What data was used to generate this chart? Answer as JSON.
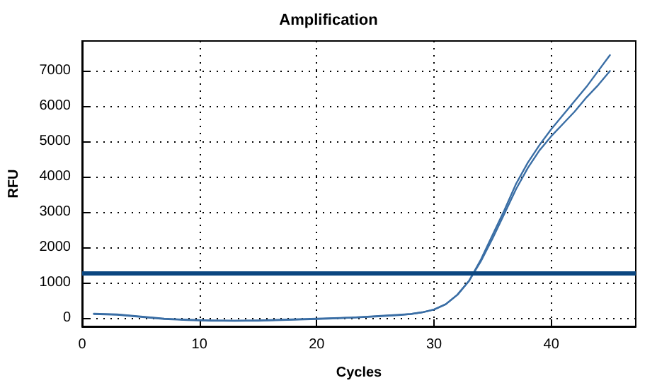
{
  "chart_data": {
    "type": "line",
    "title": "Amplification",
    "xlabel": "Cycles",
    "ylabel": "RFU",
    "x": [
      1,
      3,
      5,
      7,
      9,
      11,
      13,
      15,
      17,
      19,
      21,
      23,
      25,
      27,
      28,
      29,
      30,
      31,
      32,
      33,
      34,
      35,
      36,
      37,
      38,
      39,
      40,
      41,
      42,
      43,
      44,
      45
    ],
    "series": [
      {
        "color": "#3a6ea5",
        "values": [
          100,
          80,
          20,
          -40,
          -70,
          -90,
          -90,
          -90,
          -70,
          -50,
          -30,
          0,
          30,
          70,
          100,
          150,
          230,
          380,
          650,
          1050,
          1650,
          2350,
          3050,
          3800,
          4400,
          4900,
          5350,
          5750,
          6150,
          6550,
          7000,
          7450
        ]
      },
      {
        "color": "#3a6ea5",
        "values": [
          110,
          90,
          30,
          -30,
          -60,
          -80,
          -90,
          -80,
          -60,
          -40,
          -20,
          0,
          40,
          80,
          100,
          150,
          230,
          380,
          650,
          1050,
          1600,
          2250,
          2950,
          3650,
          4250,
          4750,
          5150,
          5500,
          5850,
          6250,
          6600,
          7000
        ]
      }
    ],
    "xlim": [
      0,
      47.2
    ],
    "xticks": [
      0,
      10,
      20,
      30,
      40
    ],
    "ylim": [
      -250,
      7850
    ],
    "yticks": [
      0,
      1000,
      2000,
      3000,
      4000,
      5000,
      6000,
      7000
    ],
    "ref_lines": [
      {
        "axis": "y",
        "value": 1250,
        "color": "#0b4680"
      }
    ],
    "grid": true,
    "marker": "none",
    "line_style": "solid"
  }
}
